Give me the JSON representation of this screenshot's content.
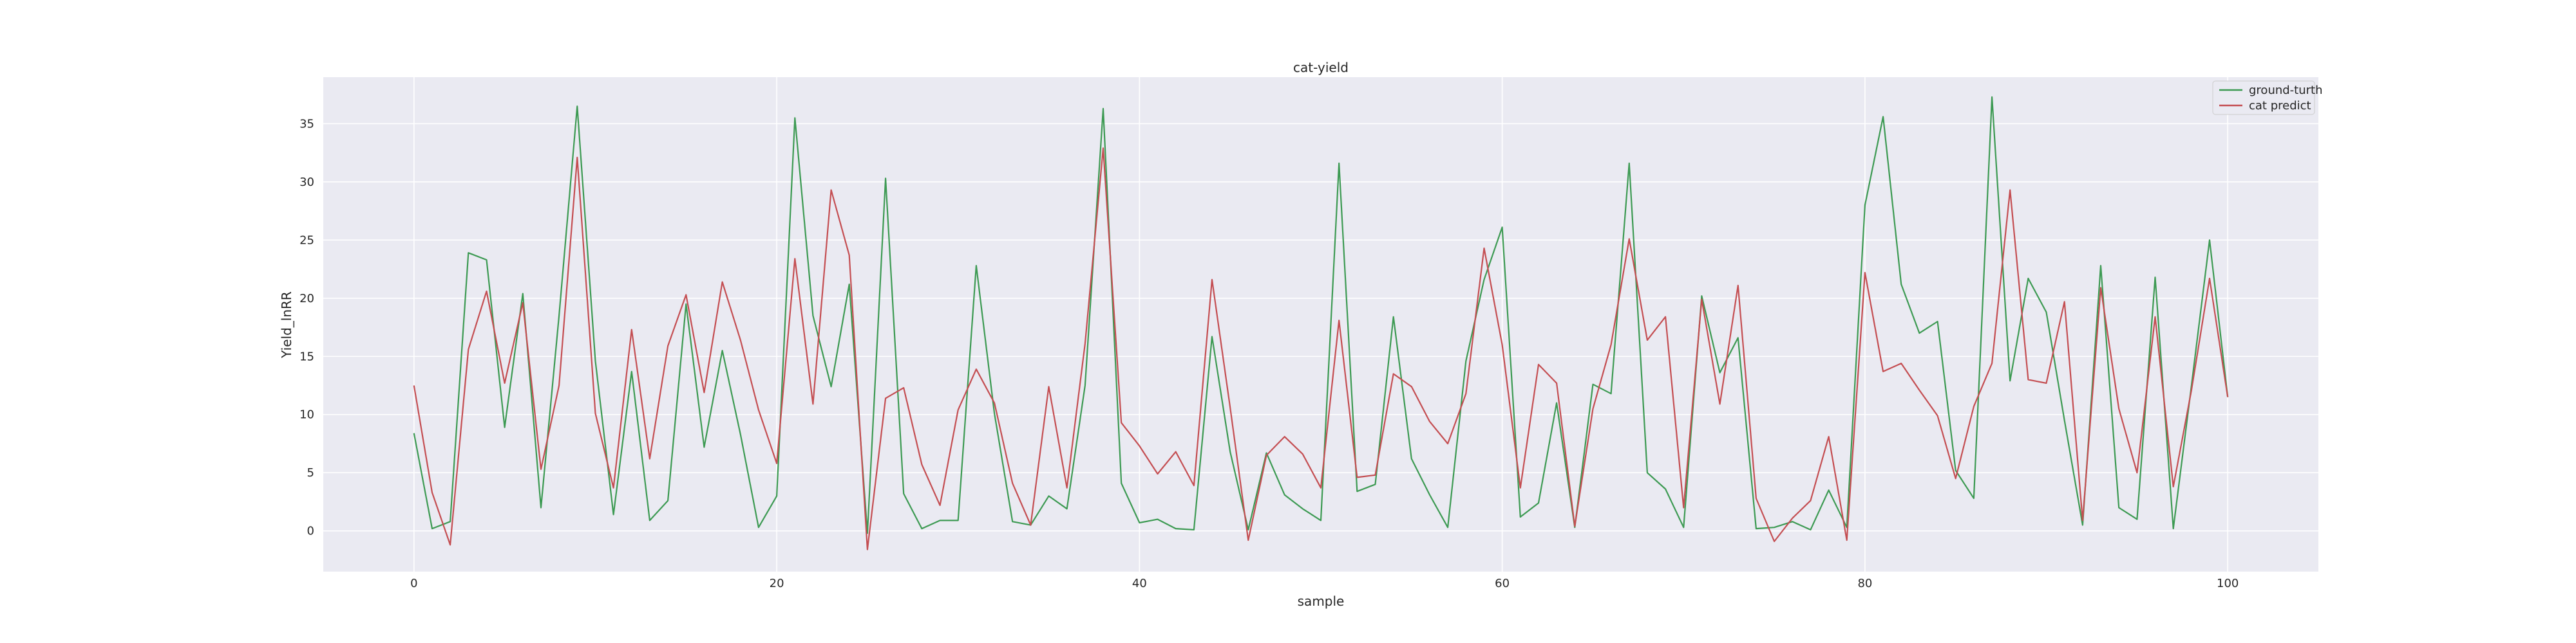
{
  "chart_data": {
    "type": "line",
    "title": "cat-yield",
    "xlabel": "sample",
    "ylabel": "Yield_lnRR",
    "xlim": [
      -5,
      105
    ],
    "ylim": [
      -3.5,
      39
    ],
    "xticks": [
      0,
      20,
      40,
      60,
      80,
      100
    ],
    "yticks": [
      0,
      5,
      10,
      15,
      20,
      25,
      30,
      35
    ],
    "grid": true,
    "legend_position": "top-right",
    "background_color": "#eaeaf2",
    "x": [
      0,
      1,
      2,
      3,
      4,
      5,
      6,
      7,
      8,
      9,
      10,
      11,
      12,
      13,
      14,
      15,
      16,
      17,
      18,
      19,
      20,
      21,
      22,
      23,
      24,
      25,
      26,
      27,
      28,
      29,
      30,
      31,
      32,
      33,
      34,
      35,
      36,
      37,
      38,
      39,
      40,
      41,
      42,
      43,
      44,
      45,
      46,
      47,
      48,
      49,
      50,
      51,
      52,
      53,
      54,
      55,
      56,
      57,
      58,
      59,
      60,
      61,
      62,
      63,
      64,
      65,
      66,
      67,
      68,
      69,
      70,
      71,
      72,
      73,
      74,
      75,
      76,
      77,
      78,
      79,
      80,
      81,
      82,
      83,
      84,
      85,
      86,
      87,
      88,
      89,
      90,
      91,
      92,
      93,
      94,
      95,
      96,
      97,
      98,
      99,
      100
    ],
    "series": [
      {
        "name": "ground-turth",
        "color": "#3d9a53",
        "values": [
          8.4,
          0.2,
          0.8,
          23.9,
          23.3,
          8.9,
          20.4,
          2.0,
          18.5,
          36.5,
          14.6,
          1.4,
          13.7,
          0.9,
          2.6,
          19.5,
          7.2,
          15.5,
          8.3,
          0.3,
          3.0,
          35.5,
          18.5,
          12.4,
          21.2,
          -0.2,
          30.3,
          3.2,
          0.2,
          0.9,
          0.9,
          22.8,
          10.1,
          0.8,
          0.5,
          3.0,
          1.9,
          12.5,
          36.3,
          4.1,
          0.7,
          1.0,
          0.2,
          0.1,
          16.7,
          6.8,
          0.1,
          6.7,
          3.1,
          1.9,
          0.9,
          31.6,
          3.4,
          4.0,
          18.4,
          6.2,
          3.1,
          0.3,
          14.6,
          21.6,
          26.1,
          1.2,
          2.4,
          11.0,
          0.3,
          12.6,
          11.8,
          31.6,
          5.0,
          3.6,
          0.3,
          20.2,
          13.6,
          16.6,
          0.2,
          0.3,
          0.8,
          0.1,
          3.5,
          0.3,
          28.0,
          35.6,
          21.2,
          17.0,
          18.0,
          5.2,
          2.8,
          37.3,
          12.9,
          21.7,
          18.8,
          9.5,
          0.5,
          22.8,
          2.0,
          1.0,
          21.8,
          0.2,
          12.5,
          25.0,
          11.5
        ]
      },
      {
        "name": "cat predict",
        "color": "#c44e52",
        "values": [
          12.5,
          3.3,
          -1.2,
          15.6,
          20.6,
          12.7,
          19.6,
          5.3,
          12.5,
          32.1,
          10.1,
          3.7,
          17.3,
          6.2,
          15.9,
          20.3,
          11.9,
          21.4,
          16.4,
          10.4,
          5.8,
          23.4,
          10.9,
          29.3,
          23.7,
          -1.6,
          11.4,
          12.3,
          5.7,
          2.2,
          10.4,
          13.9,
          11.0,
          4.1,
          0.5,
          12.4,
          3.7,
          16.1,
          32.9,
          9.3,
          7.3,
          4.9,
          6.8,
          3.9,
          21.6,
          10.6,
          -0.8,
          6.5,
          8.1,
          6.6,
          3.7,
          18.1,
          4.6,
          4.8,
          13.5,
          12.4,
          9.4,
          7.5,
          11.8,
          24.3,
          16.0,
          3.7,
          14.3,
          12.7,
          0.4,
          10.5,
          16.0,
          25.1,
          16.4,
          18.4,
          2.0,
          19.9,
          10.9,
          21.1,
          2.8,
          -0.9,
          1.1,
          2.6,
          8.1,
          -0.8,
          22.2,
          13.7,
          14.4,
          12.1,
          9.9,
          4.5,
          10.7,
          14.4,
          29.3,
          13.0,
          12.7,
          19.7,
          0.9,
          20.9,
          10.5,
          5.0,
          18.4,
          3.8,
          12.1,
          21.7,
          11.5
        ]
      }
    ]
  }
}
